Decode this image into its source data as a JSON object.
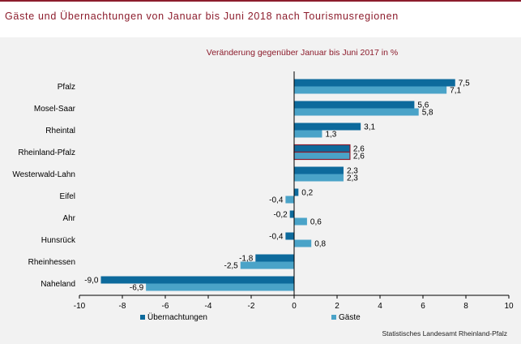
{
  "title": "Gäste und Übernachtungen von Januar bis Juni 2018 nach Tourismusregionen",
  "source": "Statistisches Landesamt Rheinland-Pfalz",
  "colors": {
    "accent": "#8c1c2c",
    "uebernachtungen": "#0d6a9c",
    "gaeste": "#4aa3c8",
    "highlight_border": "#8c1c2c"
  },
  "chart_data": {
    "type": "bar",
    "orientation": "horizontal",
    "subtitle": "Veränderung gegenüber Januar bis Juni 2017 in %",
    "categories": [
      "Pfalz",
      "Mosel-Saar",
      "Rheintal",
      "Rheinland-Pfalz",
      "Westerwald-Lahn",
      "Eifel",
      "Ahr",
      "Hunsrück",
      "Rheinhessen",
      "Naheland"
    ],
    "highlighted_category": "Rheinland-Pfalz",
    "series": [
      {
        "name": "Übernachtungen",
        "values": [
          7.5,
          5.6,
          3.1,
          2.6,
          2.3,
          0.2,
          -0.2,
          -0.4,
          -1.8,
          -9.0
        ],
        "labels": [
          "7,5",
          "5,6",
          "3,1",
          "2,6",
          "2,3",
          "0,2",
          "-0,2",
          "-0,4",
          "-1,8",
          "-9,0"
        ]
      },
      {
        "name": "Gäste",
        "values": [
          7.1,
          5.8,
          1.3,
          2.6,
          2.3,
          -0.4,
          0.6,
          0.8,
          -2.5,
          -6.9
        ],
        "labels": [
          "7,1",
          "5,8",
          "1,3",
          "2,6",
          "2,3",
          "-0,4",
          "0,6",
          "0,8",
          "-2,5",
          "-6,9"
        ]
      }
    ],
    "xlim": [
      -10,
      10
    ],
    "xticks": [
      -10,
      -8,
      -6,
      -4,
      -2,
      0,
      2,
      4,
      6,
      8,
      10
    ],
    "xtick_labels": [
      "-10",
      "-8",
      "-6",
      "-4",
      "-2",
      "0",
      "2",
      "4",
      "6",
      "8",
      "10"
    ],
    "legend_position": "bottom-left",
    "grid": false
  }
}
